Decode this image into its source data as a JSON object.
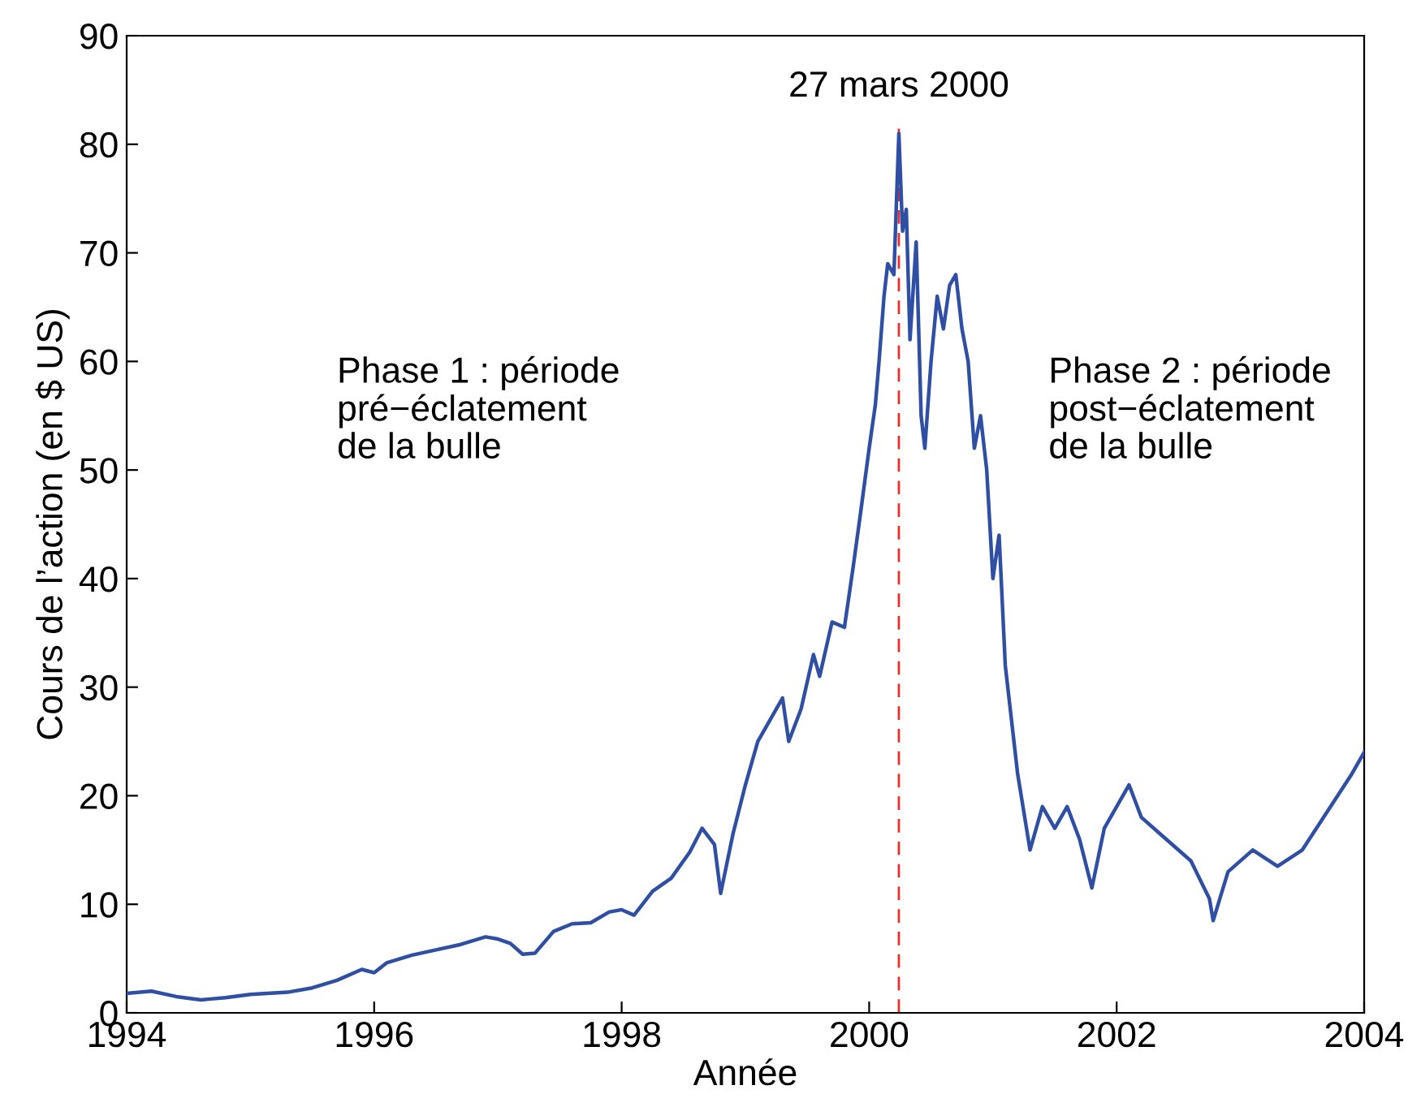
{
  "chart_data": {
    "type": "line",
    "xlabel": "Année",
    "ylabel": "Cours de l’action (en $ US)",
    "xlim": [
      1994,
      2004
    ],
    "xticks": [
      1994,
      1996,
      1998,
      2000,
      2002,
      2004
    ],
    "ylim": [
      0,
      90
    ],
    "yticks": [
      0,
      10,
      20,
      30,
      40,
      50,
      60,
      70,
      80,
      90
    ],
    "grid": false,
    "legend": false,
    "marker": "none",
    "line_style": "solid",
    "series": [
      {
        "color": "#2e4fa3",
        "x": [
          1994.0,
          1994.2,
          1994.4,
          1994.6,
          1994.8,
          1995.0,
          1995.3,
          1995.5,
          1995.7,
          1995.9,
          1996.0,
          1996.1,
          1996.3,
          1996.5,
          1996.7,
          1996.9,
          1997.0,
          1997.1,
          1997.2,
          1997.3,
          1997.45,
          1997.6,
          1997.75,
          1997.9,
          1998.0,
          1998.1,
          1998.25,
          1998.4,
          1998.55,
          1998.65,
          1998.75,
          1998.8,
          1998.9,
          1999.0,
          1999.1,
          1999.2,
          1999.3,
          1999.35,
          1999.45,
          1999.55,
          1999.6,
          1999.7,
          1999.8,
          1999.87,
          1999.93,
          2000.0,
          2000.05,
          2000.08,
          2000.12,
          2000.15,
          2000.2,
          2000.24,
          2000.27,
          2000.3,
          2000.33,
          2000.38,
          2000.42,
          2000.45,
          2000.5,
          2000.55,
          2000.6,
          2000.65,
          2000.7,
          2000.75,
          2000.8,
          2000.85,
          2000.9,
          2000.95,
          2001.0,
          2001.05,
          2001.1,
          2001.2,
          2001.3,
          2001.4,
          2001.5,
          2001.6,
          2001.7,
          2001.8,
          2001.9,
          2002.0,
          2002.1,
          2002.2,
          2002.4,
          2002.6,
          2002.75,
          2002.78,
          2002.9,
          2003.1,
          2003.3,
          2003.5,
          2003.7,
          2003.9,
          2004.0
        ],
        "values": [
          1.8,
          2.0,
          1.5,
          1.2,
          1.4,
          1.7,
          1.9,
          2.3,
          3.0,
          4.0,
          3.7,
          4.6,
          5.3,
          5.8,
          6.3,
          7.0,
          6.8,
          6.4,
          5.4,
          5.5,
          7.5,
          8.2,
          8.3,
          9.3,
          9.5,
          9.0,
          11.2,
          12.4,
          14.8,
          17.0,
          15.5,
          11.0,
          16.5,
          21,
          25,
          27,
          29,
          25,
          28,
          33,
          31,
          36,
          35.5,
          41,
          46,
          52,
          56,
          60,
          66,
          69,
          68,
          81,
          72,
          74,
          62,
          71,
          55,
          52,
          60,
          66,
          63,
          67,
          68,
          63,
          60,
          52,
          55,
          50,
          40,
          44,
          32,
          22,
          15,
          19,
          17,
          19,
          16,
          11.5,
          17,
          19,
          21,
          18,
          16,
          14,
          10.5,
          8.5,
          13,
          15,
          13.5,
          15,
          18.5,
          22,
          24
        ]
      }
    ],
    "ref_lines": [
      {
        "axis": "x",
        "value": 2000.24,
        "label": "27 mars 2000",
        "color": "#e8312a",
        "line_style": "dashed"
      }
    ],
    "annotations": [
      "Phase 1 : période\npré−éclatement\nde la bulle",
      "Phase 2 : période\npost−éclatement\nde la bulle"
    ]
  }
}
